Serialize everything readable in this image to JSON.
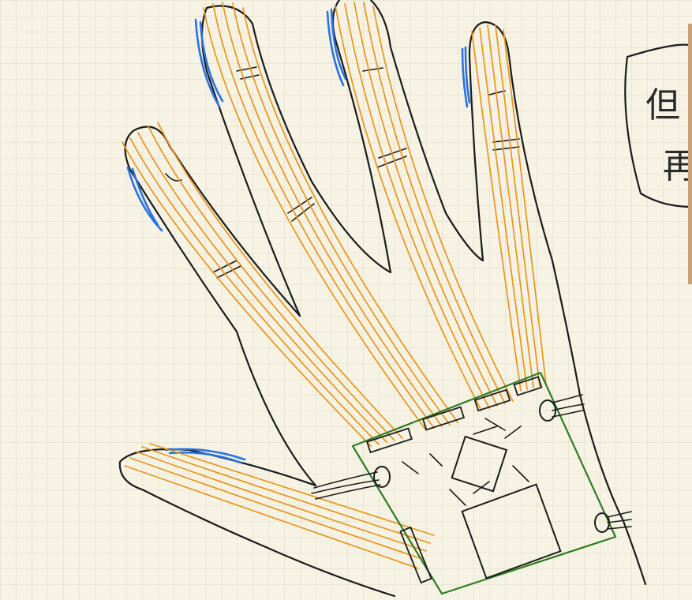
{
  "canvas": {
    "background_color": "#f6f3e4",
    "grid_color": "#d9d6c4"
  },
  "sketch": {
    "ink_colors": {
      "outline": "#1b1b1b",
      "wires": "#e8951c",
      "fingernails": "#2a73e0",
      "board": "#2f7d22"
    }
  },
  "note_box": {
    "line1": "但",
    "line2": "再"
  }
}
